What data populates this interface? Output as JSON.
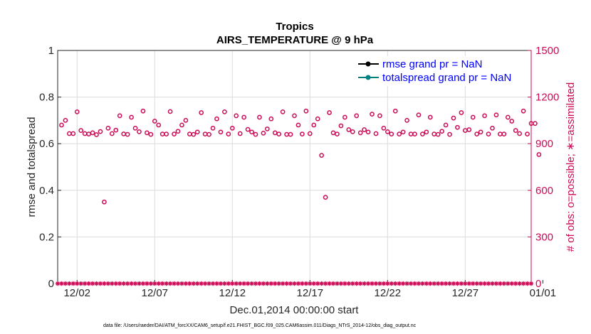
{
  "chart_data": {
    "type": "scatter",
    "title": "Tropics",
    "subtitle": "AIRS_TEMPERATURE @ 9 hPa",
    "xlabel": "Dec.01,2014 00:00:00 start",
    "ylabel_left": "rmse and totalspread",
    "ylabel_right": "# of obs: o=possible; ∗=assimilated",
    "x_range": [
      0.75,
      31.25
    ],
    "y_left_range": [
      0,
      1
    ],
    "y_right_range": [
      0,
      1500
    ],
    "x_ticks": [
      {
        "value": 2,
        "label": "12/02"
      },
      {
        "value": 7,
        "label": "12/07"
      },
      {
        "value": 12,
        "label": "12/12"
      },
      {
        "value": 17,
        "label": "12/17"
      },
      {
        "value": 22,
        "label": "12/22"
      },
      {
        "value": 27,
        "label": "12/27"
      },
      {
        "value": 32,
        "label": "01/01"
      }
    ],
    "y_left_ticks": [
      {
        "value": 0,
        "label": "0"
      },
      {
        "value": 0.2,
        "label": "0.2"
      },
      {
        "value": 0.4,
        "label": "0.4"
      },
      {
        "value": 0.6,
        "label": "0.6"
      },
      {
        "value": 0.8,
        "label": "0.8"
      },
      {
        "value": 1,
        "label": "1"
      }
    ],
    "y_right_ticks": [
      {
        "value": 0,
        "label": "0"
      },
      {
        "value": 300,
        "label": "300"
      },
      {
        "value": 600,
        "label": "600"
      },
      {
        "value": 900,
        "label": "900"
      },
      {
        "value": 1200,
        "label": "1200"
      },
      {
        "value": 1500,
        "label": "1500"
      }
    ],
    "legend": [
      {
        "label": "rmse grand pr = NaN",
        "color": "#000000"
      },
      {
        "label": "totalspread grand pr = NaN",
        "color": "#008080"
      }
    ],
    "legend_position": "top-right",
    "grid": true,
    "series": [
      {
        "name": "possible obs",
        "marker": "circle",
        "axis": "right",
        "color": "#cc0a55",
        "x_start": 1.0,
        "x_step": 0.25,
        "values": [
          1020,
          1050,
          965,
          965,
          1105,
          985,
          965,
          962,
          970,
          958,
          978,
          525,
          1000,
          965,
          987,
          1080,
          963,
          960,
          1070,
          1000,
          977,
          1110,
          970,
          960,
          1045,
          1020,
          962,
          962,
          1107,
          962,
          980,
          1020,
          1050,
          962,
          960,
          975,
          1100,
          962,
          960,
          1000,
          1060,
          975,
          1105,
          962,
          1000,
          1080,
          965,
          1070,
          992,
          975,
          960,
          1070,
          968,
          995,
          1060,
          970,
          962,
          1105,
          960,
          960,
          1080,
          1020,
          962,
          1110,
          965,
          1020,
          1060,
          825,
          555,
          1100,
          970,
          962,
          1015,
          1070,
          990,
          977,
          1080,
          970,
          990,
          975,
          1090,
          965,
          1080,
          1000,
          977,
          962,
          1110,
          962,
          975,
          1050,
          962,
          962,
          1085,
          962,
          975,
          1070,
          962,
          960,
          980,
          1020,
          960,
          1065,
          1005,
          1100,
          985,
          990,
          1070,
          962,
          975,
          1080,
          962,
          1000,
          1085,
          962,
          962,
          1070,
          1045,
          985,
          965,
          1110,
          962,
          1030,
          1030,
          830
        ]
      },
      {
        "name": "assimilated obs",
        "marker": "asterisk",
        "axis": "right",
        "color": "#cc0a55",
        "x_start": 0.75,
        "x_step": 0.25,
        "values": [
          0,
          0,
          0,
          0,
          0,
          0,
          0,
          0,
          0,
          0,
          0,
          0,
          0,
          0,
          0,
          0,
          0,
          0,
          0,
          0,
          0,
          0,
          0,
          0,
          0,
          0,
          0,
          0,
          0,
          0,
          0,
          0,
          0,
          0,
          0,
          0,
          0,
          0,
          0,
          0,
          0,
          0,
          0,
          0,
          0,
          0,
          0,
          0,
          0,
          0,
          0,
          0,
          0,
          0,
          0,
          0,
          0,
          0,
          0,
          0,
          0,
          0,
          0,
          0,
          0,
          0,
          0,
          0,
          0,
          0,
          0,
          0,
          0,
          0,
          0,
          0,
          0,
          0,
          0,
          0,
          0,
          0,
          0,
          0,
          0,
          0,
          0,
          0,
          0,
          0,
          0,
          0,
          0,
          0,
          0,
          0,
          0,
          0,
          0,
          0,
          0,
          0,
          0,
          0,
          0,
          0,
          0,
          0,
          0,
          0,
          0,
          0,
          0,
          0,
          0,
          0,
          0,
          0,
          0,
          0,
          0,
          0,
          0
        ]
      }
    ],
    "footnote": "data file: /Users/raeder/DAI/ATM_forcXX/CAM6_setup/f.e21.FHIST_BGC.f09_025.CAM6assim.011/Diags_NTrS_2014-12/obs_diag_output.nc"
  }
}
